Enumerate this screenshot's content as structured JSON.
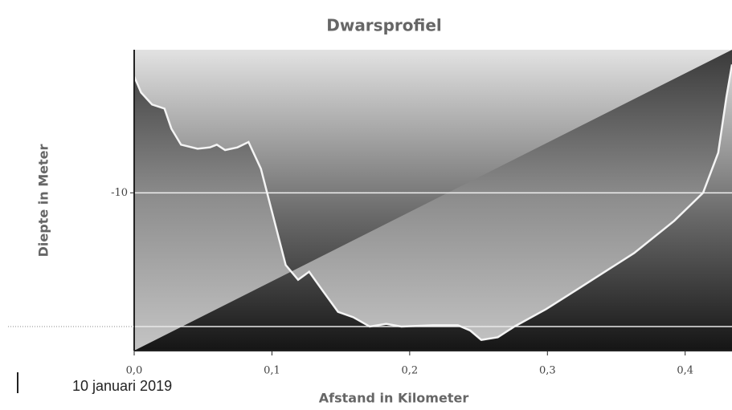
{
  "chart_data": {
    "type": "area",
    "title": "Dwarsprofiel",
    "x_label": "Afstand in Kilometer",
    "y_label": "Diepte in Meter",
    "annotation": "10 januari 2019",
    "x": [
      0,
      0.005,
      0.013,
      0.022,
      0.027,
      0.034,
      0.046,
      0.055,
      0.06,
      0.066,
      0.075,
      0.083,
      0.092,
      0.101,
      0.11,
      0.119,
      0.127,
      0.136,
      0.148,
      0.159,
      0.171,
      0.183,
      0.194,
      0.217,
      0.235,
      0.244,
      0.252,
      0.264,
      0.276,
      0.299,
      0.322,
      0.363,
      0.392,
      0.413,
      0.424,
      0.43,
      0.434
    ],
    "values": [
      -1.3,
      -2.5,
      -3.4,
      -3.7,
      -5.2,
      -6.4,
      -6.7,
      -6.6,
      -6.4,
      -6.8,
      -6.6,
      -6.2,
      -8.2,
      -11.8,
      -15.4,
      -16.5,
      -15.9,
      -17.2,
      -18.9,
      -19.3,
      -20.0,
      -19.8,
      -20.0,
      -19.9,
      -19.9,
      -20.3,
      -21.0,
      -20.8,
      -20.0,
      -18.7,
      -17.2,
      -14.5,
      -12.1,
      -10.0,
      -7.0,
      -2.8,
      -0.4
    ],
    "color": "#f4f4f4",
    "xlim": [
      0,
      0.434
    ],
    "ylim": [
      -21.8,
      0.7
    ],
    "xticks": [
      {
        "value": 0,
        "label": "0,0"
      },
      {
        "value": 0.1,
        "label": "0,1"
      },
      {
        "value": 0.2,
        "label": "0,2"
      },
      {
        "value": 0.3,
        "label": "0,3"
      },
      {
        "value": 0.4,
        "label": "0,4"
      }
    ],
    "yticks": [
      -10
    ],
    "hline": -20,
    "grid": true
  }
}
